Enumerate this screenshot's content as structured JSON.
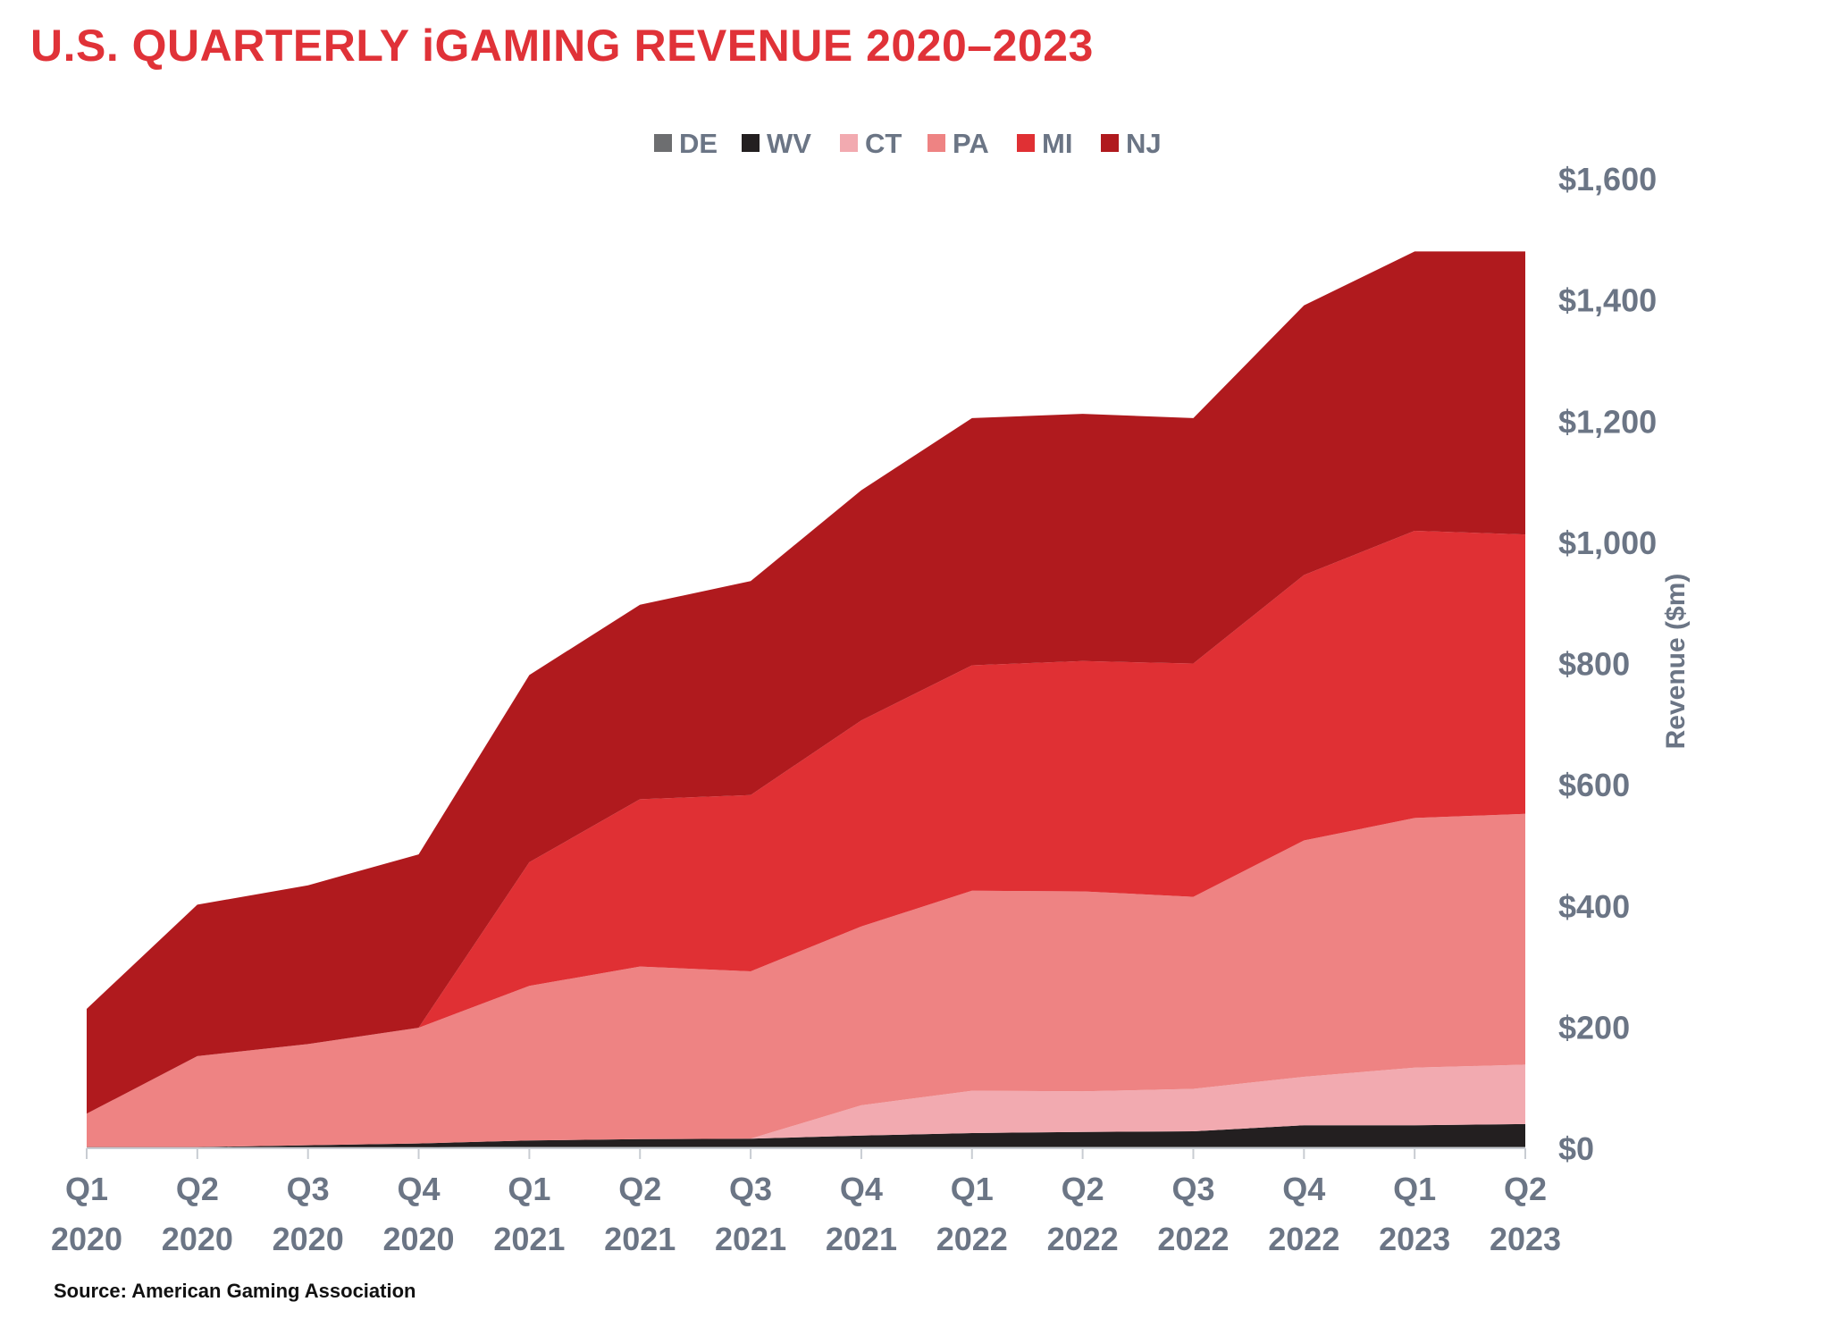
{
  "title": "U.S. QUARTERLY iGAMING REVENUE 2020–2023",
  "source": "Source: American Gaming Association",
  "chart_data": {
    "type": "area",
    "stacked": true,
    "title": "U.S. QUARTERLY iGAMING REVENUE 2020–2023",
    "xlabel": "",
    "ylabel": "Revenue ($m)",
    "ylim": [
      0,
      1600
    ],
    "y_ticks": [
      0,
      200,
      400,
      600,
      800,
      1000,
      1200,
      1400,
      1600
    ],
    "y_tick_labels": [
      "$0",
      "$200",
      "$400",
      "$600",
      "$800",
      "$1,000",
      "$1,200",
      "$1,400",
      "$1,600"
    ],
    "y_axis_position": "right",
    "legend_position": "top-center",
    "grid": false,
    "categories": [
      [
        "Q1",
        "2020"
      ],
      [
        "Q2",
        "2020"
      ],
      [
        "Q3",
        "2020"
      ],
      [
        "Q4",
        "2020"
      ],
      [
        "Q1",
        "2021"
      ],
      [
        "Q2",
        "2021"
      ],
      [
        "Q3",
        "2021"
      ],
      [
        "Q4",
        "2021"
      ],
      [
        "Q1",
        "2022"
      ],
      [
        "Q2",
        "2022"
      ],
      [
        "Q3",
        "2022"
      ],
      [
        "Q4",
        "2022"
      ],
      [
        "Q1",
        "2023"
      ],
      [
        "Q2",
        "2023"
      ]
    ],
    "series": [
      {
        "name": "DE",
        "color": "#6d6e70",
        "values": [
          2,
          2,
          2,
          2,
          3,
          3,
          3,
          3,
          3,
          3,
          3,
          3,
          3,
          3
        ]
      },
      {
        "name": "WV",
        "color": "#231f20",
        "values": [
          0,
          0,
          3,
          6,
          10,
          12,
          13,
          18,
          22,
          24,
          25,
          35,
          35,
          37
        ]
      },
      {
        "name": "CT",
        "color": "#f2aab0",
        "values": [
          0,
          0,
          0,
          0,
          0,
          0,
          0,
          50,
          70,
          67,
          70,
          80,
          95,
          98
        ]
      },
      {
        "name": "PA",
        "color": "#ee8383",
        "values": [
          55,
          150,
          167,
          191,
          255,
          285,
          276,
          295,
          330,
          330,
          317,
          390,
          412,
          414
        ]
      },
      {
        "name": "MI",
        "color": "#e03034",
        "values": [
          0,
          0,
          0,
          0,
          204,
          276,
          291,
          340,
          372,
          380,
          385,
          438,
          474,
          461
        ]
      },
      {
        "name": "NJ",
        "color": "#b01a1e",
        "values": [
          173,
          250,
          262,
          286,
          309,
          321,
          353,
          380,
          408,
          408,
          405,
          445,
          461,
          467
        ]
      }
    ]
  }
}
